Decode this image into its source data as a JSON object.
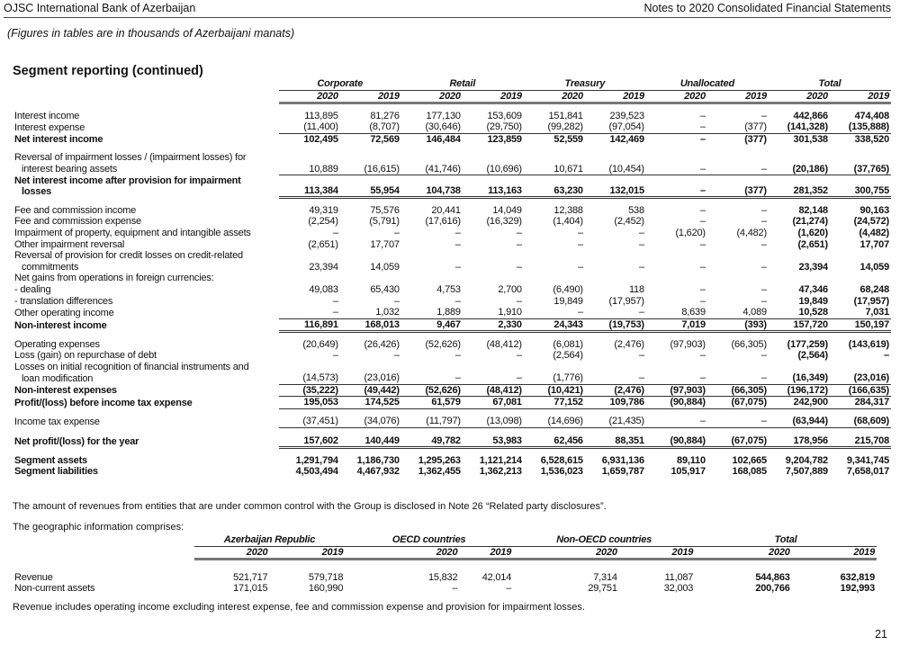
{
  "header": {
    "left": "OJSC International Bank of Azerbaijan",
    "right": "Notes to 2020 Consolidated Financial Statements"
  },
  "subtitle": "(Figures in tables are in thousands of Azerbaijani manats)",
  "title": "Segment reporting (continued)",
  "segment": {
    "groups": [
      "Corporate",
      "Retail",
      "Treasury",
      "Unallocated",
      "Total"
    ],
    "years": [
      "2020",
      "2019"
    ],
    "rows": [
      {
        "label": "Interest income",
        "values": [
          "113,895",
          "81,276",
          "177,130",
          "153,609",
          "151,841",
          "239,523",
          "–",
          "–",
          "442,866",
          "474,408"
        ]
      },
      {
        "label": "Interest expense",
        "values": [
          "(11,400)",
          "(8,707)",
          "(30,646)",
          "(29,750)",
          "(99,282)",
          "(97,054)",
          "–",
          "(377)",
          "(141,328)",
          "(135,888)"
        ],
        "rule": "single"
      },
      {
        "label": "Net interest income",
        "bold": true,
        "values": [
          "102,495",
          "72,569",
          "146,484",
          "123,859",
          "52,559",
          "142,469",
          "–",
          "(377)",
          "301,538",
          "338,520"
        ]
      },
      {
        "spacer": true
      },
      {
        "label": "Reversal of impairment losses / (impairment losses) for",
        "label2": "interest bearing assets",
        "values": [
          "10,889",
          "(16,615)",
          "(41,746)",
          "(10,696)",
          "10,671",
          "(10,454)",
          "–",
          "–",
          "(20,186)",
          "(37,765)"
        ],
        "rule": "single"
      },
      {
        "label": "Net interest income after provision for impairment",
        "label2": "losses",
        "bold": true,
        "values": [
          "113,384",
          "55,954",
          "104,738",
          "113,163",
          "63,230",
          "132,015",
          "–",
          "(377)",
          "281,352",
          "300,755"
        ],
        "rule": "double"
      },
      {
        "spacer": true
      },
      {
        "label": "Fee and commission income",
        "values": [
          "49,319",
          "75,576",
          "20,441",
          "14,049",
          "12,388",
          "538",
          "–",
          "–",
          "82,148",
          "90,163"
        ]
      },
      {
        "label": "Fee and commission expense",
        "values": [
          "(2,254)",
          "(5,791)",
          "(17,616)",
          "(16,329)",
          "(1,404)",
          "(2,452)",
          "–",
          "–",
          "(21,274)",
          "(24,572)"
        ]
      },
      {
        "label": "Impairment of property, equipment and intangible assets",
        "values": [
          "–",
          "–",
          "–",
          "–",
          "–",
          "–",
          "(1,620)",
          "(4,482)",
          "(1,620)",
          "(4,482)"
        ]
      },
      {
        "label": "Other impairment reversal",
        "values": [
          "(2,651)",
          "17,707",
          "–",
          "–",
          "–",
          "–",
          "–",
          "–",
          "(2,651)",
          "17,707"
        ]
      },
      {
        "label": "Reversal of provision for credit losses on credit-related",
        "label2": "commitments",
        "values": [
          "23,394",
          "14,059",
          "–",
          "–",
          "–",
          "–",
          "–",
          "–",
          "23,394",
          "14,059"
        ]
      },
      {
        "label": "Net gains from operations in foreign currencies:",
        "values": [
          "",
          "",
          "",
          "",
          "",
          "",
          "",
          "",
          "",
          ""
        ]
      },
      {
        "label": "- dealing",
        "values": [
          "49,083",
          "65,430",
          "4,753",
          "2,700",
          "(6,490)",
          "118",
          "–",
          "–",
          "47,346",
          "68,248"
        ]
      },
      {
        "label": "- translation differences",
        "values": [
          "–",
          "–",
          "–",
          "–",
          "19,849",
          "(17,957)",
          "–",
          "–",
          "19,849",
          "(17,957)"
        ]
      },
      {
        "label": "Other operating income",
        "values": [
          "–",
          "1,032",
          "1,889",
          "1,910",
          "–",
          "–",
          "8,639",
          "4,089",
          "10,528",
          "7,031"
        ],
        "rule": "single"
      },
      {
        "label": "Non-interest income",
        "bold": true,
        "values": [
          "116,891",
          "168,013",
          "9,467",
          "2,330",
          "24,343",
          "(19,753)",
          "7,019",
          "(393)",
          "157,720",
          "150,197"
        ],
        "rule": "double"
      },
      {
        "spacer": true
      },
      {
        "label": "Operating expenses",
        "values": [
          "(20,649)",
          "(26,426)",
          "(52,626)",
          "(48,412)",
          "(6,081)",
          "(2,476)",
          "(97,903)",
          "(66,305)",
          "(177,259)",
          "(143,619)"
        ]
      },
      {
        "label": "Loss (gain) on repurchase of debt",
        "values": [
          "–",
          "–",
          "–",
          "–",
          "(2,564)",
          "–",
          "–",
          "–",
          "(2,564)",
          "–"
        ]
      },
      {
        "label": "Losses on initial recognition of financial instruments and",
        "label2": "loan modification",
        "values": [
          "(14,573)",
          "(23,016)",
          "–",
          "–",
          "(1,776)",
          "–",
          "–",
          "–",
          "(16,349)",
          "(23,016)"
        ],
        "rule": "single"
      },
      {
        "label": "Non-interest expenses",
        "bold": true,
        "values": [
          "(35,222)",
          "(49,442)",
          "(52,626)",
          "(48,412)",
          "(10,421)",
          "(2,476)",
          "(97,903)",
          "(66,305)",
          "(196,172)",
          "(166,635)"
        ],
        "rule": "single"
      },
      {
        "label": "Profit/(loss) before income tax expense",
        "bold": true,
        "values": [
          "195,053",
          "174,525",
          "61,579",
          "67,081",
          "77,152",
          "109,786",
          "(90,884)",
          "(67,075)",
          "242,900",
          "284,317"
        ],
        "rule": "single"
      },
      {
        "spacer": true
      },
      {
        "label": "Income tax expense",
        "values": [
          "(37,451)",
          "(34,076)",
          "(11,797)",
          "(13,098)",
          "(14,696)",
          "(21,435)",
          "–",
          "–",
          "(63,944)",
          "(68,609)"
        ],
        "rule": "single"
      },
      {
        "spacer": true
      },
      {
        "label": "Net profit/(loss) for the year",
        "bold": true,
        "values": [
          "157,602",
          "140,449",
          "49,782",
          "53,983",
          "62,456",
          "88,351",
          "(90,884)",
          "(67,075)",
          "178,956",
          "215,708"
        ],
        "rule": "double"
      },
      {
        "spacer": true
      },
      {
        "label": "Segment assets",
        "bold": true,
        "values": [
          "1,291,794",
          "1,186,730",
          "1,295,263",
          "1,121,214",
          "6,528,615",
          "6,931,136",
          "89,110",
          "102,665",
          "9,204,782",
          "9,341,745"
        ]
      },
      {
        "label": "Segment liabilities",
        "bold": true,
        "values": [
          "4,503,494",
          "4,467,932",
          "1,362,455",
          "1,362,213",
          "1,536,023",
          "1,659,787",
          "105,917",
          "168,085",
          "7,507,889",
          "7,658,017"
        ]
      }
    ]
  },
  "note1": "The amount of revenues from entities that are under common control with the Group is disclosed in Note 26 “Related party disclosures”.",
  "geo_intro": "The geographic information comprises:",
  "geo": {
    "groups": [
      "Azerbaijan Republic",
      "OECD countries",
      "Non-OECD countries",
      "Total"
    ],
    "years": [
      "2020",
      "2019"
    ],
    "rows": [
      {
        "label": "Revenue",
        "values": [
          "521,717",
          "579,718",
          "15,832",
          "42,014",
          "7,314",
          "11,087",
          "544,863",
          "632,819"
        ]
      },
      {
        "label": "Non-current assets",
        "values": [
          "171,015",
          "160,990",
          "–",
          "–",
          "29,751",
          "32,003",
          "200,766",
          "192,993"
        ]
      }
    ]
  },
  "note2": "Revenue includes operating income excluding interest expense, fee and commission expense and provision for impairment losses.",
  "page_number": "21"
}
